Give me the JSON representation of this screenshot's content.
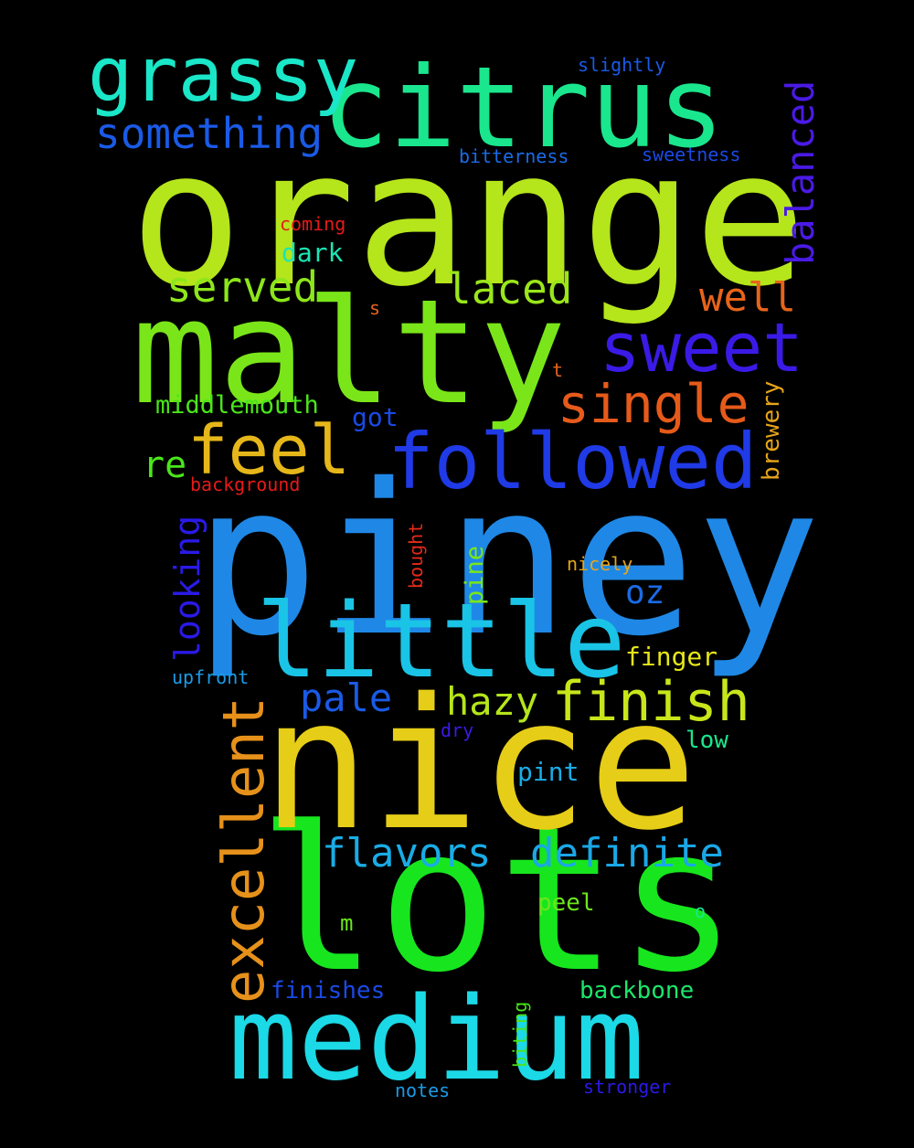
{
  "background": "#000000",
  "words": [
    {
      "text": "orange",
      "color": "#b5e51b"
    },
    {
      "text": "piney",
      "color": "#1f88e6"
    },
    {
      "text": "lots",
      "color": "#17e61f"
    },
    {
      "text": "nice",
      "color": "#e6cd17"
    },
    {
      "text": "malty",
      "color": "#7ae61a"
    },
    {
      "text": "medium",
      "color": "#1bd9e6"
    },
    {
      "text": "citrus",
      "color": "#1ae68d"
    },
    {
      "text": "little",
      "color": "#1ac4e6"
    },
    {
      "text": "followed",
      "color": "#1f3ae6"
    },
    {
      "text": "grassy",
      "color": "#1ae6c8"
    },
    {
      "text": "sweet",
      "color": "#3a1ae6"
    },
    {
      "text": "feel",
      "color": "#e6b71a"
    },
    {
      "text": "excellent",
      "color": "#e6911a"
    },
    {
      "text": "finish",
      "color": "#c8e61a"
    },
    {
      "text": "single",
      "color": "#e65a1a"
    },
    {
      "text": "something",
      "color": "#1a5ae6"
    },
    {
      "text": "balanced",
      "color": "#4a1ae6"
    },
    {
      "text": "laced",
      "color": "#9ae61a"
    },
    {
      "text": "served",
      "color": "#8de61a"
    },
    {
      "text": "flavors",
      "color": "#1aace6"
    },
    {
      "text": "definite",
      "color": "#1aa7e6"
    },
    {
      "text": "well",
      "color": "#e6641a"
    },
    {
      "text": "hazy",
      "color": "#b5e61a"
    },
    {
      "text": "pale",
      "color": "#1a5ae6"
    },
    {
      "text": "looking",
      "color": "#2a1ae6"
    },
    {
      "text": "oz",
      "color": "#1a6be6"
    },
    {
      "text": "re",
      "color": "#4ae61a"
    },
    {
      "text": "middlemouth",
      "color": "#4ae61a"
    },
    {
      "text": "got",
      "color": "#1a4ae6"
    },
    {
      "text": "dark",
      "color": "#1ae6b5"
    },
    {
      "text": "finger",
      "color": "#e6e61a"
    },
    {
      "text": "brewery",
      "color": "#e6a41a"
    },
    {
      "text": "pine",
      "color": "#7ae61a"
    },
    {
      "text": "finishes",
      "color": "#1a4ae6"
    },
    {
      "text": "backbone",
      "color": "#1ae66b"
    },
    {
      "text": "pint",
      "color": "#1aace6"
    },
    {
      "text": "peel",
      "color": "#6be61a"
    },
    {
      "text": "low",
      "color": "#1ae68d"
    },
    {
      "text": "bitterness",
      "color": "#1a6be6"
    },
    {
      "text": "sweetness",
      "color": "#1a4ae6"
    },
    {
      "text": "slightly",
      "color": "#1a5ae6"
    },
    {
      "text": "coming",
      "color": "#e61a1a"
    },
    {
      "text": "background",
      "color": "#e61a1a"
    },
    {
      "text": "nicely",
      "color": "#e6a41a"
    },
    {
      "text": "bought",
      "color": "#e62a1a"
    },
    {
      "text": "upfront",
      "color": "#1a9be6"
    },
    {
      "text": "dry",
      "color": "#3a1ae6"
    },
    {
      "text": "notes",
      "color": "#1a9be6"
    },
    {
      "text": "stronger",
      "color": "#2a1ae6"
    },
    {
      "text": "biting",
      "color": "#4ae61a"
    },
    {
      "text": "m",
      "color": "#6be61a"
    },
    {
      "text": "o",
      "color": "#1ae68d"
    },
    {
      "text": "s",
      "color": "#e6641a"
    },
    {
      "text": "t",
      "color": "#e6641a"
    }
  ]
}
